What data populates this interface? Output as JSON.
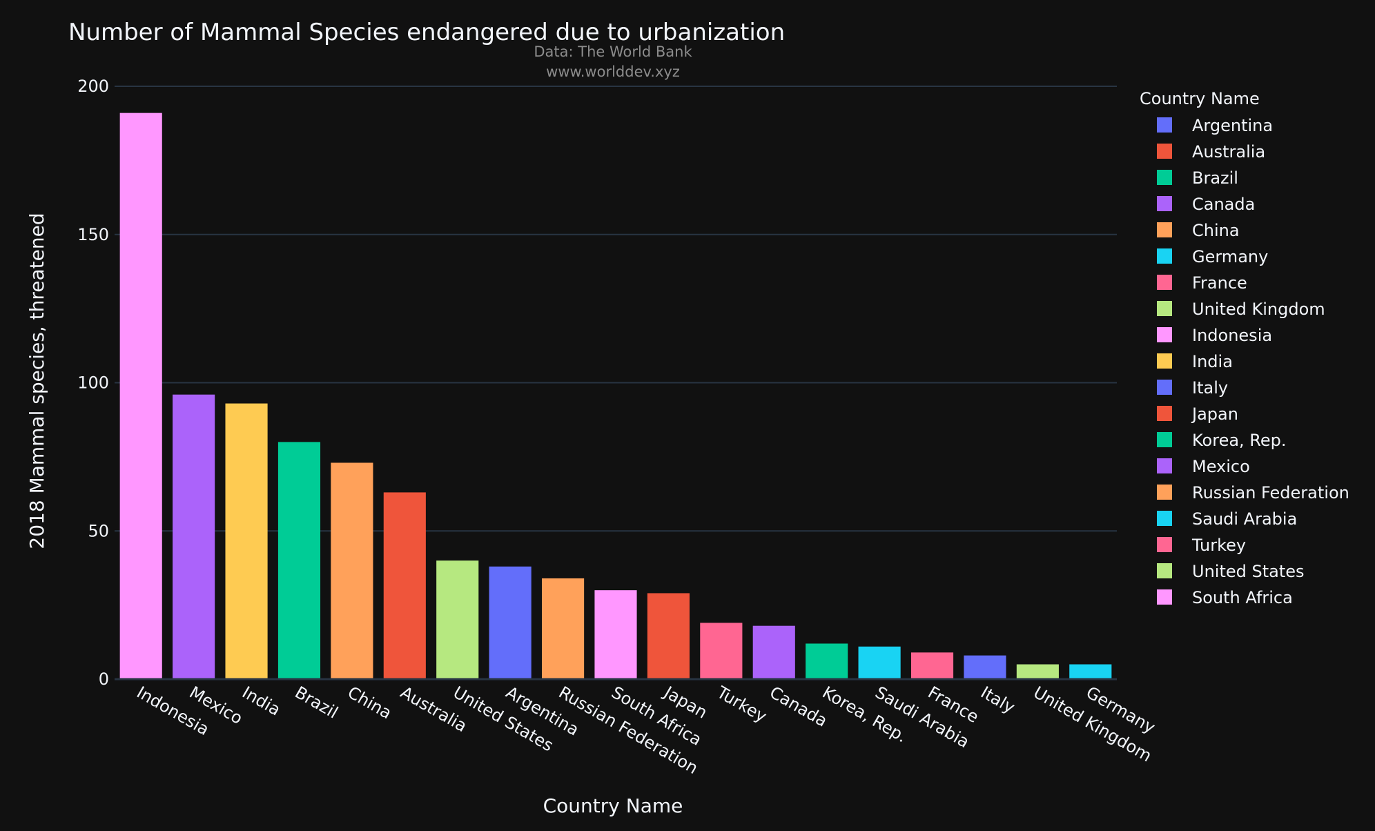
{
  "chart_data": {
    "type": "bar",
    "title": "Number of Mammal Species endangered due to urbanization",
    "subtitle_line1": "Data: The World Bank",
    "subtitle_line2": "www.worlddev.xyz",
    "xlabel": "Country Name",
    "ylabel": "2018 Mammal species, threatened",
    "ylim": [
      0,
      200
    ],
    "yticks": [
      0,
      50,
      100,
      150,
      200
    ],
    "grid": true,
    "legend_title": "Country Name",
    "legend_position": "right",
    "categories": [
      "Indonesia",
      "Mexico",
      "India",
      "Brazil",
      "China",
      "Australia",
      "United States",
      "Argentina",
      "Russian Federation",
      "South Africa",
      "Japan",
      "Turkey",
      "Canada",
      "Korea, Rep.",
      "Saudi Arabia",
      "France",
      "Italy",
      "United Kingdom",
      "Germany"
    ],
    "values": [
      191,
      96,
      93,
      80,
      73,
      63,
      40,
      38,
      34,
      30,
      29,
      19,
      18,
      12,
      11,
      9,
      8,
      5,
      5
    ],
    "bar_colors": [
      "#FF97FF",
      "#AB63FA",
      "#FECB52",
      "#00CC96",
      "#FFA15A",
      "#EF553B",
      "#B6E880",
      "#636EFA",
      "#FFA15A",
      "#FF97FF",
      "#EF553B",
      "#FF6692",
      "#AB63FA",
      "#00CC96",
      "#19D3F3",
      "#FF6692",
      "#636EFA",
      "#B6E880",
      "#19D3F3"
    ],
    "legend": [
      {
        "name": "Argentina",
        "color": "#636EFA"
      },
      {
        "name": "Australia",
        "color": "#EF553B"
      },
      {
        "name": "Brazil",
        "color": "#00CC96"
      },
      {
        "name": "Canada",
        "color": "#AB63FA"
      },
      {
        "name": "China",
        "color": "#FFA15A"
      },
      {
        "name": "Germany",
        "color": "#19D3F3"
      },
      {
        "name": "France",
        "color": "#FF6692"
      },
      {
        "name": "United Kingdom",
        "color": "#B6E880"
      },
      {
        "name": "Indonesia",
        "color": "#FF97FF"
      },
      {
        "name": "India",
        "color": "#FECB52"
      },
      {
        "name": "Italy",
        "color": "#636EFA"
      },
      {
        "name": "Japan",
        "color": "#EF553B"
      },
      {
        "name": "Korea, Rep.",
        "color": "#00CC96"
      },
      {
        "name": "Mexico",
        "color": "#AB63FA"
      },
      {
        "name": "Russian Federation",
        "color": "#FFA15A"
      },
      {
        "name": "Saudi Arabia",
        "color": "#19D3F3"
      },
      {
        "name": "Turkey",
        "color": "#FF6692"
      },
      {
        "name": "United States",
        "color": "#B6E880"
      },
      {
        "name": "South Africa",
        "color": "#FF97FF"
      }
    ]
  }
}
